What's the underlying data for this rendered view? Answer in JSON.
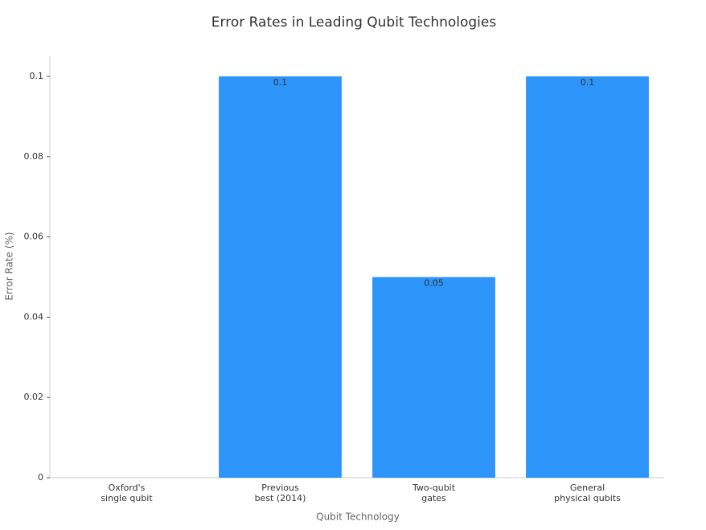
{
  "chart_data": {
    "type": "bar",
    "title": "Error Rates in Leading Qubit Technologies",
    "x_label": "Qubit Technology",
    "y_label": "Error Rate (%)",
    "categories": [
      "Oxford's\nsingle qubit",
      "Previous\nbest (2014)",
      "Two-qubit\ngates",
      "General\nphysical qubits"
    ],
    "values": [
      0,
      0.1,
      0.05,
      0.1
    ],
    "value_labels": [
      null,
      "0.1",
      "0.05",
      "0.1"
    ],
    "color": "#2d94f9",
    "ylim": [
      0,
      0.105
    ],
    "yticks": [
      0,
      0.02,
      0.04,
      0.06,
      0.08,
      0.1
    ],
    "grid": false
  }
}
